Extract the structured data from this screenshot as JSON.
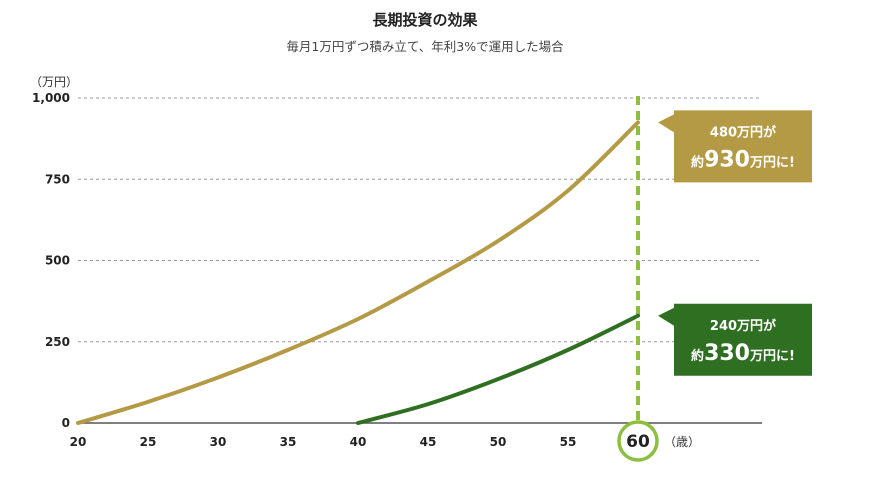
{
  "colors": {
    "gold": "#b49a45",
    "green": "#2f6f22",
    "marker": "#8cbf3f",
    "grid": "#9a9a9a",
    "text": "#222222"
  },
  "chart_data": {
    "type": "line",
    "title": "長期投資の効果",
    "subtitle": "毎月1万円ずつ積み立て、年利3%で運用した場合",
    "ylabel": "（万円）",
    "xlabel": "（歳）",
    "xlim": [
      20,
      69
    ],
    "ylim": [
      0,
      1000
    ],
    "x_ticks": [
      {
        "value": 20,
        "label": "20"
      },
      {
        "value": 25,
        "label": "25"
      },
      {
        "value": 30,
        "label": "30"
      },
      {
        "value": 35,
        "label": "35"
      },
      {
        "value": 40,
        "label": "40"
      },
      {
        "value": 45,
        "label": "45"
      },
      {
        "value": 50,
        "label": "50"
      },
      {
        "value": 55,
        "label": "55"
      },
      {
        "value": 60,
        "label": "60"
      }
    ],
    "y_ticks": [
      {
        "value": 0,
        "label": "0"
      },
      {
        "value": 250,
        "label": "250"
      },
      {
        "value": 500,
        "label": "500"
      },
      {
        "value": 750,
        "label": "750"
      },
      {
        "value": 1000,
        "label": "1,000"
      }
    ],
    "grid": "horizontal dashed",
    "marker_x": 60,
    "series": [
      {
        "color": "#b49a45",
        "points": [
          [
            20,
            0
          ],
          [
            25,
            65
          ],
          [
            30,
            140
          ],
          [
            35,
            225
          ],
          [
            40,
            320
          ],
          [
            45,
            435
          ],
          [
            50,
            560
          ],
          [
            55,
            715
          ],
          [
            60,
            925
          ]
        ],
        "callout": {
          "line1": "480万円が",
          "prefix": "約",
          "big": "930",
          "suffix": "万円に!"
        }
      },
      {
        "color": "#2f6f22",
        "points": [
          [
            40,
            0
          ],
          [
            45,
            58
          ],
          [
            50,
            135
          ],
          [
            55,
            225
          ],
          [
            60,
            330
          ]
        ],
        "callout": {
          "line1": "240万円が",
          "prefix": "約",
          "big": "330",
          "suffix": "万円に!"
        }
      }
    ]
  }
}
